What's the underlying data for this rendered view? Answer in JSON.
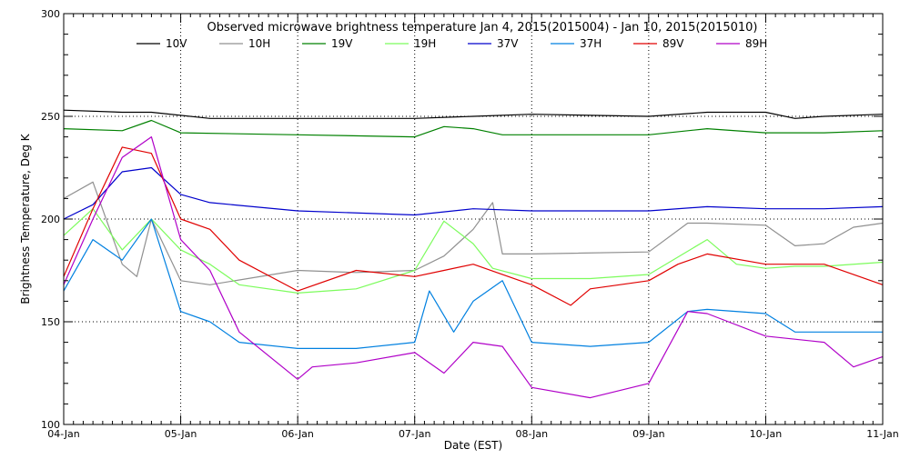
{
  "chart_data": {
    "type": "line",
    "title": "Observed microwave brightness temperature Jan  4, 2015(2015004) - Jan 10, 2015(2015010)",
    "xlabel": "Date (EST)",
    "ylabel": "Brightness Temperature, Deg K",
    "x_unit": "day",
    "xlim": [
      "2015-01-04",
      "2015-01-11"
    ],
    "ylim": [
      100,
      300
    ],
    "x_ticks": [
      "04-Jan",
      "05-Jan",
      "06-Jan",
      "07-Jan",
      "08-Jan",
      "09-Jan",
      "10-Jan",
      "11-Jan"
    ],
    "y_ticks": [
      100,
      150,
      200,
      250,
      300
    ],
    "grid": "dotted",
    "legend_position": "top",
    "series": [
      {
        "name": "10V",
        "color": "#000000",
        "x": [
          "2015-01-04",
          "2015-01-04T12:00",
          "2015-01-04T18:00",
          "2015-01-05T06:00",
          "2015-01-06",
          "2015-01-07",
          "2015-01-07T12:00",
          "2015-01-08",
          "2015-01-09",
          "2015-01-09T12:00",
          "2015-01-10",
          "2015-01-10T06:00",
          "2015-01-10T12:00",
          "2015-01-11"
        ],
        "y": [
          253,
          252,
          252,
          249,
          249,
          249,
          250,
          251,
          250,
          252,
          252,
          249,
          250,
          251
        ]
      },
      {
        "name": "10H",
        "color": "#909090",
        "x": [
          "2015-01-04",
          "2015-01-04T06:00",
          "2015-01-04T12:00",
          "2015-01-04T15:00",
          "2015-01-04T18:00",
          "2015-01-05",
          "2015-01-05T06:00",
          "2015-01-06",
          "2015-01-06T12:00",
          "2015-01-07",
          "2015-01-07T06:00",
          "2015-01-07T12:00",
          "2015-01-07T16:00",
          "2015-01-07T18:00",
          "2015-01-08",
          "2015-01-09",
          "2015-01-09T08:00",
          "2015-01-09T12:00",
          "2015-01-10",
          "2015-01-10T06:00",
          "2015-01-10T12:00",
          "2015-01-10T18:00",
          "2015-01-11"
        ],
        "y": [
          210,
          218,
          178,
          172,
          200,
          170,
          168,
          175,
          174,
          175,
          182,
          195,
          208,
          183,
          183,
          184,
          198,
          198,
          197,
          187,
          188,
          196,
          198
        ]
      },
      {
        "name": "19V",
        "color": "#008000",
        "x": [
          "2015-01-04",
          "2015-01-04T12:00",
          "2015-01-04T18:00",
          "2015-01-05",
          "2015-01-06",
          "2015-01-07",
          "2015-01-07T06:00",
          "2015-01-07T12:00",
          "2015-01-07T18:00",
          "2015-01-08",
          "2015-01-09",
          "2015-01-09T12:00",
          "2015-01-10",
          "2015-01-10T12:00",
          "2015-01-11"
        ],
        "y": [
          244,
          243,
          248,
          242,
          241,
          240,
          245,
          244,
          241,
          241,
          241,
          244,
          242,
          242,
          243
        ]
      },
      {
        "name": "19H",
        "color": "#7CFC5C",
        "x": [
          "2015-01-04",
          "2015-01-04T06:00",
          "2015-01-04T12:00",
          "2015-01-04T18:00",
          "2015-01-05",
          "2015-01-05T06:00",
          "2015-01-05T12:00",
          "2015-01-06",
          "2015-01-06T12:00",
          "2015-01-07",
          "2015-01-07T06:00",
          "2015-01-07T12:00",
          "2015-01-07T16:00",
          "2015-01-08",
          "2015-01-08T12:00",
          "2015-01-09",
          "2015-01-09T12:00",
          "2015-01-09T18:00",
          "2015-01-10",
          "2015-01-10T06:00",
          "2015-01-10T12:00",
          "2015-01-11"
        ],
        "y": [
          192,
          205,
          185,
          200,
          185,
          178,
          168,
          164,
          166,
          175,
          199,
          188,
          176,
          171,
          171,
          173,
          190,
          178,
          176,
          177,
          177,
          179
        ]
      },
      {
        "name": "37V",
        "color": "#0000CC",
        "x": [
          "2015-01-04",
          "2015-01-04T06:00",
          "2015-01-04T12:00",
          "2015-01-04T18:00",
          "2015-01-05",
          "2015-01-05T06:00",
          "2015-01-06",
          "2015-01-07",
          "2015-01-07T12:00",
          "2015-01-08",
          "2015-01-09",
          "2015-01-09T12:00",
          "2015-01-10",
          "2015-01-10T12:00",
          "2015-01-11"
        ],
        "y": [
          200,
          207,
          223,
          225,
          212,
          208,
          204,
          202,
          205,
          204,
          204,
          206,
          205,
          205,
          206
        ]
      },
      {
        "name": "37H",
        "color": "#0080E0",
        "x": [
          "2015-01-04",
          "2015-01-04T06:00",
          "2015-01-04T12:00",
          "2015-01-04T18:00",
          "2015-01-05",
          "2015-01-05T06:00",
          "2015-01-05T12:00",
          "2015-01-06",
          "2015-01-06T12:00",
          "2015-01-07",
          "2015-01-07T03:00",
          "2015-01-07T08:00",
          "2015-01-07T12:00",
          "2015-01-07T18:00",
          "2015-01-08",
          "2015-01-08T12:00",
          "2015-01-09",
          "2015-01-09T08:00",
          "2015-01-09T12:00",
          "2015-01-10",
          "2015-01-10T06:00",
          "2015-01-10T12:00",
          "2015-01-11"
        ],
        "y": [
          165,
          190,
          180,
          200,
          155,
          150,
          140,
          137,
          137,
          140,
          165,
          145,
          160,
          170,
          140,
          138,
          140,
          155,
          156,
          154,
          145,
          145,
          145
        ]
      },
      {
        "name": "89V",
        "color": "#E00000",
        "x": [
          "2015-01-04",
          "2015-01-04T06:00",
          "2015-01-04T12:00",
          "2015-01-04T18:00",
          "2015-01-05",
          "2015-01-05T06:00",
          "2015-01-05T12:00",
          "2015-01-06",
          "2015-01-06T12:00",
          "2015-01-07",
          "2015-01-07T06:00",
          "2015-01-07T12:00",
          "2015-01-08",
          "2015-01-08T08:00",
          "2015-01-08T12:00",
          "2015-01-09",
          "2015-01-09T06:00",
          "2015-01-09T12:00",
          "2015-01-10",
          "2015-01-10T12:00",
          "2015-01-11"
        ],
        "y": [
          172,
          205,
          235,
          232,
          200,
          195,
          180,
          165,
          175,
          172,
          175,
          178,
          168,
          158,
          166,
          170,
          178,
          183,
          178,
          178,
          168
        ]
      },
      {
        "name": "89H",
        "color": "#B000C8",
        "x": [
          "2015-01-04",
          "2015-01-04T06:00",
          "2015-01-04T12:00",
          "2015-01-04T18:00",
          "2015-01-05",
          "2015-01-05T06:00",
          "2015-01-05T12:00",
          "2015-01-06",
          "2015-01-06T03:00",
          "2015-01-06T12:00",
          "2015-01-07",
          "2015-01-07T06:00",
          "2015-01-07T12:00",
          "2015-01-07T18:00",
          "2015-01-08",
          "2015-01-08T12:00",
          "2015-01-09",
          "2015-01-09T08:00",
          "2015-01-09T12:00",
          "2015-01-10",
          "2015-01-10T12:00",
          "2015-01-10T18:00",
          "2015-01-11"
        ],
        "y": [
          168,
          200,
          230,
          240,
          190,
          175,
          145,
          122,
          128,
          130,
          135,
          125,
          140,
          138,
          118,
          113,
          120,
          155,
          154,
          143,
          140,
          128,
          133
        ]
      }
    ]
  }
}
